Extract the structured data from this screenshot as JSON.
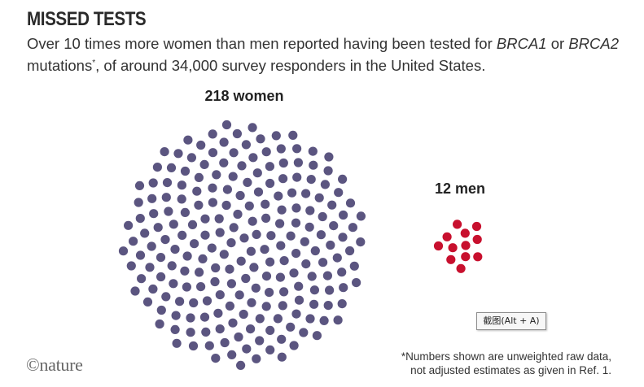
{
  "header": {
    "title": "MISSED TESTS",
    "subtitle_pre": "Over 10 times more women than men reported having been tested for ",
    "subtitle_gene1": "BRCA1",
    "subtitle_mid": " or ",
    "subtitle_gene2": "BRCA2",
    "subtitle_mid2": " mutations",
    "subtitle_sup": "*",
    "subtitle_post": ", of around 34,000 survey responders in the United States."
  },
  "chart_data": {
    "type": "dot-cluster",
    "groups": [
      {
        "label": "218 women",
        "count": 218,
        "color": "#5b5580"
      },
      {
        "label": "12 men",
        "count": 12,
        "color": "#c8102e"
      }
    ]
  },
  "tooltip": {
    "text": "截图(Alt + A)"
  },
  "footer": {
    "logo": "©nature",
    "footnote_line1": "*Numbers shown are unweighted raw data,",
    "footnote_line2": "not adjusted estimates as given in Ref. 1."
  }
}
